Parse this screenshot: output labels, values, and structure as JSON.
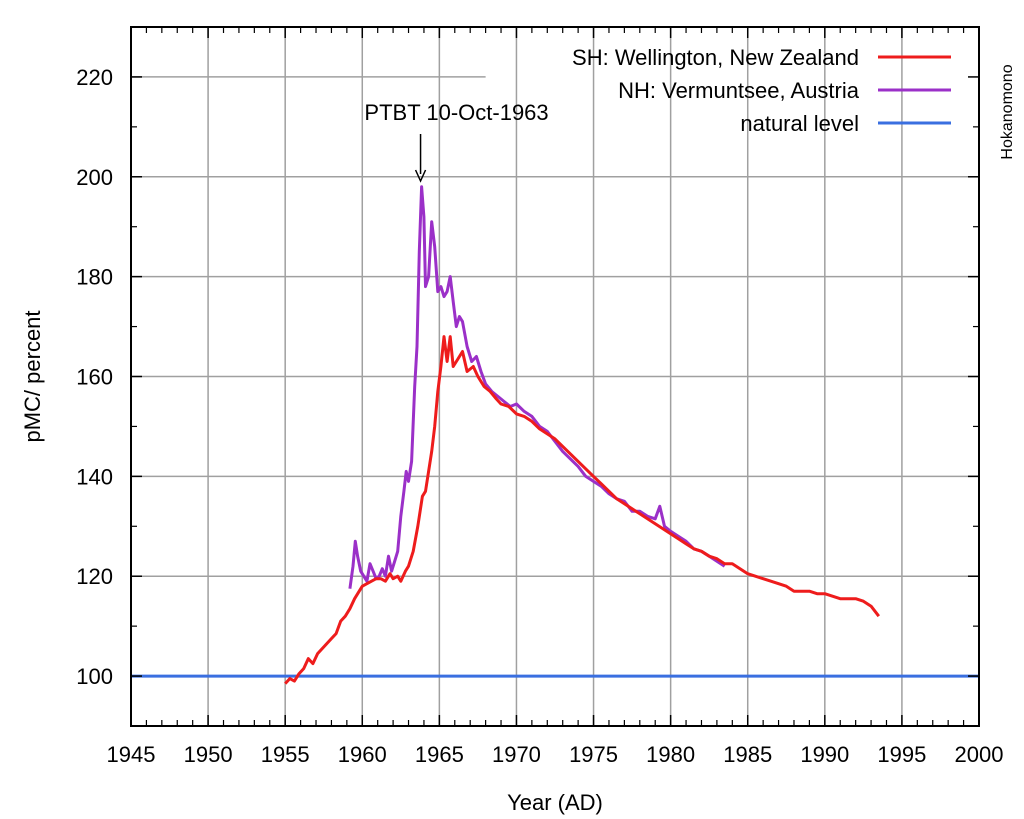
{
  "chart_data": {
    "type": "line",
    "xlabel": "Year (AD)",
    "ylabel": "pMC/ percent",
    "xlim": [
      1945,
      2000
    ],
    "ylim": [
      90,
      230
    ],
    "xticks": [
      1945,
      1950,
      1955,
      1960,
      1965,
      1970,
      1975,
      1980,
      1985,
      1990,
      1995,
      2000
    ],
    "yticks": [
      100,
      120,
      140,
      160,
      180,
      200,
      220
    ],
    "grid": true,
    "legend_position": "top-right",
    "series": [
      {
        "name": "SH: Wellington, New Zealand",
        "color": "#ee1c1c",
        "points": [
          [
            1955.0,
            98.5
          ],
          [
            1955.3,
            99.5
          ],
          [
            1955.6,
            99.0
          ],
          [
            1955.9,
            100.5
          ],
          [
            1956.2,
            101.5
          ],
          [
            1956.5,
            103.5
          ],
          [
            1956.8,
            102.5
          ],
          [
            1957.1,
            104.5
          ],
          [
            1957.4,
            105.5
          ],
          [
            1957.7,
            106.5
          ],
          [
            1958.0,
            107.5
          ],
          [
            1958.3,
            108.5
          ],
          [
            1958.6,
            111.0
          ],
          [
            1958.9,
            112.0
          ],
          [
            1959.2,
            113.5
          ],
          [
            1959.5,
            115.5
          ],
          [
            1959.8,
            117.0
          ],
          [
            1960.0,
            118.0
          ],
          [
            1960.3,
            118.5
          ],
          [
            1960.6,
            119.0
          ],
          [
            1960.9,
            119.5
          ],
          [
            1961.2,
            119.5
          ],
          [
            1961.5,
            119.0
          ],
          [
            1961.8,
            120.5
          ],
          [
            1962.0,
            119.5
          ],
          [
            1962.3,
            120.0
          ],
          [
            1962.5,
            119.0
          ],
          [
            1962.8,
            121.0
          ],
          [
            1963.0,
            122.0
          ],
          [
            1963.3,
            125.0
          ],
          [
            1963.6,
            130.0
          ],
          [
            1963.9,
            136.0
          ],
          [
            1964.1,
            137.0
          ],
          [
            1964.3,
            141.0
          ],
          [
            1964.5,
            145.0
          ],
          [
            1964.7,
            150.0
          ],
          [
            1964.9,
            157.0
          ],
          [
            1965.1,
            162.0
          ],
          [
            1965.3,
            168.0
          ],
          [
            1965.5,
            163.0
          ],
          [
            1965.7,
            168.0
          ],
          [
            1965.9,
            162.0
          ],
          [
            1966.2,
            163.5
          ],
          [
            1966.5,
            165.0
          ],
          [
            1966.8,
            161.0
          ],
          [
            1967.2,
            162.0
          ],
          [
            1967.5,
            160.0
          ],
          [
            1967.9,
            158.0
          ],
          [
            1968.3,
            157.0
          ],
          [
            1968.7,
            155.5
          ],
          [
            1969.0,
            154.5
          ],
          [
            1969.5,
            154.0
          ],
          [
            1970.0,
            152.5
          ],
          [
            1970.5,
            152.0
          ],
          [
            1971.0,
            151.0
          ],
          [
            1971.5,
            149.5
          ],
          [
            1972.0,
            148.5
          ],
          [
            1972.5,
            147.5
          ],
          [
            1973.0,
            146.0
          ],
          [
            1973.5,
            144.5
          ],
          [
            1974.0,
            143.0
          ],
          [
            1974.5,
            141.5
          ],
          [
            1975.0,
            140.0
          ],
          [
            1975.5,
            138.5
          ],
          [
            1976.0,
            137.0
          ],
          [
            1976.5,
            135.5
          ],
          [
            1977.0,
            134.5
          ],
          [
            1977.5,
            133.5
          ],
          [
            1978.0,
            132.5
          ],
          [
            1978.5,
            131.5
          ],
          [
            1979.0,
            130.5
          ],
          [
            1979.5,
            129.5
          ],
          [
            1980.0,
            128.5
          ],
          [
            1980.5,
            127.5
          ],
          [
            1981.0,
            126.5
          ],
          [
            1981.5,
            125.5
          ],
          [
            1982.0,
            125.0
          ],
          [
            1982.5,
            124.0
          ],
          [
            1983.0,
            123.5
          ],
          [
            1983.5,
            122.5
          ],
          [
            1984.0,
            122.5
          ],
          [
            1984.5,
            121.5
          ],
          [
            1985.0,
            120.5
          ],
          [
            1985.5,
            120.0
          ],
          [
            1986.0,
            119.5
          ],
          [
            1986.5,
            119.0
          ],
          [
            1987.0,
            118.5
          ],
          [
            1987.5,
            118.0
          ],
          [
            1988.0,
            117.0
          ],
          [
            1988.5,
            117.0
          ],
          [
            1989.0,
            117.0
          ],
          [
            1989.5,
            116.5
          ],
          [
            1990.0,
            116.5
          ],
          [
            1990.5,
            116.0
          ],
          [
            1991.0,
            115.5
          ],
          [
            1991.5,
            115.5
          ],
          [
            1992.0,
            115.5
          ],
          [
            1992.5,
            115.0
          ],
          [
            1993.0,
            114.0
          ],
          [
            1993.5,
            112.0
          ]
        ]
      },
      {
        "name": "NH: Vermuntsee, Austria",
        "color": "#9b30c8",
        "points": [
          [
            1959.2,
            117.5
          ],
          [
            1959.4,
            122.0
          ],
          [
            1959.55,
            127.0
          ],
          [
            1959.7,
            124.0
          ],
          [
            1959.9,
            121.0
          ],
          [
            1960.1,
            120.0
          ],
          [
            1960.3,
            119.0
          ],
          [
            1960.5,
            122.5
          ],
          [
            1960.7,
            121.0
          ],
          [
            1960.9,
            119.5
          ],
          [
            1961.1,
            120.0
          ],
          [
            1961.3,
            121.5
          ],
          [
            1961.5,
            120.0
          ],
          [
            1961.7,
            124.0
          ],
          [
            1961.9,
            121.0
          ],
          [
            1962.1,
            123.0
          ],
          [
            1962.3,
            125.0
          ],
          [
            1962.5,
            132.0
          ],
          [
            1962.7,
            137.0
          ],
          [
            1962.85,
            141.0
          ],
          [
            1963.0,
            139.0
          ],
          [
            1963.2,
            143.0
          ],
          [
            1963.4,
            158.0
          ],
          [
            1963.55,
            166.0
          ],
          [
            1963.7,
            185.0
          ],
          [
            1963.85,
            198.0
          ],
          [
            1964.0,
            192.0
          ],
          [
            1964.1,
            178.0
          ],
          [
            1964.3,
            180.0
          ],
          [
            1964.5,
            191.0
          ],
          [
            1964.7,
            186.0
          ],
          [
            1964.9,
            177.0
          ],
          [
            1965.1,
            178.0
          ],
          [
            1965.3,
            176.0
          ],
          [
            1965.5,
            177.0
          ],
          [
            1965.7,
            180.0
          ],
          [
            1965.9,
            175.0
          ],
          [
            1966.1,
            170.0
          ],
          [
            1966.3,
            172.0
          ],
          [
            1966.5,
            171.0
          ],
          [
            1966.8,
            166.0
          ],
          [
            1967.1,
            163.0
          ],
          [
            1967.4,
            164.0
          ],
          [
            1967.7,
            161.0
          ],
          [
            1968.0,
            158.5
          ],
          [
            1968.4,
            157.0
          ],
          [
            1968.8,
            156.0
          ],
          [
            1969.2,
            155.0
          ],
          [
            1969.6,
            154.0
          ],
          [
            1970.0,
            154.5
          ],
          [
            1970.5,
            153.0
          ],
          [
            1971.0,
            152.0
          ],
          [
            1971.5,
            150.0
          ],
          [
            1972.0,
            149.0
          ],
          [
            1972.5,
            147.0
          ],
          [
            1973.0,
            145.0
          ],
          [
            1973.5,
            143.5
          ],
          [
            1974.0,
            142.0
          ],
          [
            1974.5,
            140.0
          ],
          [
            1975.0,
            139.0
          ],
          [
            1975.5,
            138.0
          ],
          [
            1976.0,
            136.5
          ],
          [
            1976.5,
            135.5
          ],
          [
            1977.0,
            135.0
          ],
          [
            1977.5,
            133.0
          ],
          [
            1978.0,
            133.0
          ],
          [
            1978.5,
            132.0
          ],
          [
            1979.0,
            131.5
          ],
          [
            1979.3,
            134.0
          ],
          [
            1979.6,
            130.0
          ],
          [
            1980.0,
            129.0
          ],
          [
            1980.5,
            128.0
          ],
          [
            1981.0,
            127.0
          ],
          [
            1981.5,
            125.5
          ],
          [
            1982.0,
            125.0
          ],
          [
            1982.5,
            124.0
          ],
          [
            1983.0,
            123.0
          ],
          [
            1983.5,
            122.0
          ]
        ]
      },
      {
        "name": "natural level",
        "color": "#3a6fe0",
        "points": [
          [
            1945,
            100
          ],
          [
            2000,
            100
          ]
        ]
      }
    ],
    "annotations": [
      {
        "text": "PTBT 10-Oct-1963",
        "x": 1963.78,
        "y": 199,
        "type": "arrow"
      }
    ],
    "side_text": "Hokanomono"
  }
}
